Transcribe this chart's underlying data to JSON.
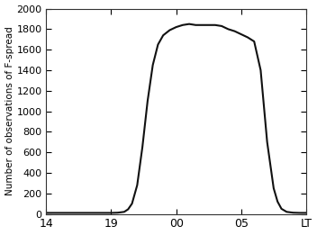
{
  "ylabel": "Number of observations of F-spread",
  "xtick_labels": [
    "14",
    "19",
    "00",
    "05",
    "LT"
  ],
  "xtick_positions": [
    0,
    5,
    10,
    15,
    20
  ],
  "ylim": [
    0,
    2000
  ],
  "ytick_positions": [
    0,
    200,
    400,
    600,
    800,
    1000,
    1200,
    1400,
    1600,
    1800,
    2000
  ],
  "line_color": "#111111",
  "line_width": 1.5,
  "background_color": "#ffffff",
  "x": [
    0,
    1,
    2,
    3,
    4,
    5,
    5.5,
    6,
    6.3,
    6.6,
    7.0,
    7.4,
    7.8,
    8.2,
    8.6,
    9.0,
    9.5,
    10.0,
    10.5,
    11.0,
    11.5,
    12.0,
    12.5,
    13.0,
    13.5,
    14.0,
    14.5,
    15.0,
    15.5,
    16.0,
    16.5,
    17.0,
    17.5,
    17.8,
    18.1,
    18.5,
    19.0,
    19.5,
    20.0
  ],
  "y": [
    10,
    10,
    10,
    10,
    10,
    10,
    12,
    20,
    45,
    100,
    280,
    650,
    1100,
    1450,
    1650,
    1740,
    1790,
    1820,
    1840,
    1850,
    1840,
    1840,
    1840,
    1840,
    1830,
    1800,
    1780,
    1750,
    1720,
    1680,
    1400,
    700,
    250,
    120,
    50,
    20,
    12,
    10,
    10
  ]
}
